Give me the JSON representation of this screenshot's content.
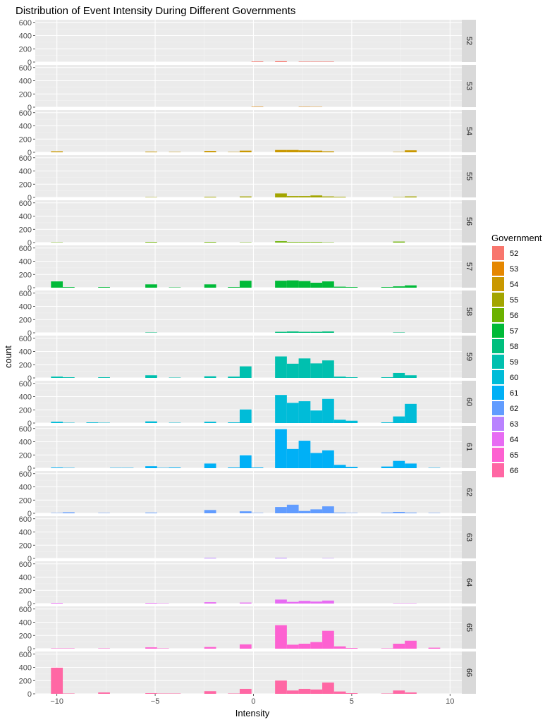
{
  "chart_data": {
    "type": "bar",
    "title": "Distribution of Event Intensity During Different Governments",
    "xlabel": "Intensity",
    "ylabel": "count",
    "xlim": [
      -11.1,
      10.6
    ],
    "ylim": [
      0,
      640
    ],
    "x_ticks": [
      -10,
      -5,
      0,
      5,
      10
    ],
    "x_tick_labels": [
      "−10",
      "−5",
      "0",
      "5",
      "10"
    ],
    "y_ticks": [
      0,
      200,
      400,
      600
    ],
    "y_tick_labels": [
      "0",
      "200",
      "400",
      "600"
    ],
    "bin_width": 0.6,
    "bin_centers": [
      -10.0,
      -9.4,
      -8.8,
      -8.2,
      -7.6,
      -7.0,
      -6.4,
      -5.8,
      -5.2,
      -4.6,
      -4.0,
      -3.4,
      -2.8,
      -2.2,
      -1.6,
      -1.0,
      -0.4,
      0.2,
      0.8,
      1.4,
      2.0,
      2.6,
      3.2,
      3.8,
      4.4,
      5.0,
      5.6,
      6.2,
      6.8,
      7.4,
      8.0,
      8.6,
      9.2,
      9.8
    ],
    "grid": true,
    "legend": {
      "title": "Government",
      "position": "right"
    },
    "series": [
      {
        "name": "52",
        "color": "#F8766D",
        "values": [
          0,
          0,
          0,
          0,
          0,
          0,
          0,
          0,
          0,
          0,
          0,
          0,
          0,
          0,
          0,
          0,
          0,
          8,
          0,
          12,
          0,
          6,
          6,
          6,
          0,
          0,
          0,
          0,
          0,
          0,
          0,
          0,
          0,
          0
        ]
      },
      {
        "name": "53",
        "color": "#E58700",
        "values": [
          0,
          0,
          0,
          0,
          0,
          0,
          0,
          0,
          0,
          0,
          0,
          0,
          0,
          0,
          0,
          0,
          0,
          6,
          0,
          0,
          0,
          5,
          4,
          0,
          0,
          0,
          0,
          0,
          0,
          0,
          0,
          0,
          0,
          0
        ]
      },
      {
        "name": "54",
        "color": "#C99800",
        "values": [
          15,
          0,
          0,
          0,
          0,
          0,
          0,
          0,
          10,
          0,
          5,
          0,
          0,
          20,
          0,
          5,
          25,
          0,
          0,
          35,
          35,
          30,
          25,
          15,
          0,
          0,
          0,
          0,
          0,
          5,
          30,
          0,
          0,
          0
        ]
      },
      {
        "name": "55",
        "color": "#A3A500",
        "values": [
          0,
          0,
          0,
          0,
          0,
          0,
          0,
          0,
          5,
          0,
          0,
          0,
          0,
          10,
          0,
          0,
          15,
          0,
          0,
          60,
          20,
          20,
          30,
          15,
          10,
          0,
          0,
          0,
          0,
          5,
          15,
          0,
          0,
          0
        ]
      },
      {
        "name": "56",
        "color": "#6BB100",
        "values": [
          5,
          0,
          0,
          0,
          0,
          0,
          0,
          0,
          10,
          0,
          0,
          0,
          0,
          10,
          0,
          0,
          5,
          0,
          0,
          20,
          10,
          10,
          10,
          5,
          0,
          0,
          0,
          0,
          0,
          15,
          0,
          0,
          0,
          0
        ]
      },
      {
        "name": "57",
        "color": "#00BA38",
        "values": [
          95,
          10,
          0,
          0,
          10,
          0,
          0,
          0,
          50,
          0,
          5,
          0,
          0,
          50,
          0,
          10,
          105,
          0,
          0,
          105,
          110,
          100,
          75,
          95,
          15,
          10,
          0,
          0,
          10,
          20,
          35,
          0,
          0,
          0
        ]
      },
      {
        "name": "58",
        "color": "#00BF7D",
        "values": [
          0,
          0,
          0,
          0,
          0,
          0,
          0,
          0,
          5,
          0,
          0,
          0,
          0,
          0,
          0,
          0,
          0,
          0,
          0,
          15,
          20,
          15,
          15,
          20,
          0,
          0,
          0,
          0,
          0,
          5,
          0,
          0,
          0,
          0
        ]
      },
      {
        "name": "59",
        "color": "#00C0AF",
        "values": [
          20,
          10,
          0,
          0,
          10,
          0,
          0,
          0,
          40,
          0,
          5,
          0,
          0,
          25,
          0,
          20,
          175,
          0,
          0,
          325,
          215,
          295,
          220,
          265,
          20,
          10,
          0,
          0,
          10,
          75,
          40,
          0,
          0,
          0
        ]
      },
      {
        "name": "60",
        "color": "#00BCD8",
        "values": [
          20,
          5,
          0,
          10,
          5,
          0,
          0,
          0,
          25,
          0,
          5,
          0,
          0,
          20,
          0,
          10,
          205,
          0,
          0,
          425,
          305,
          330,
          190,
          365,
          50,
          35,
          0,
          0,
          10,
          100,
          290,
          0,
          0,
          0
        ]
      },
      {
        "name": "61",
        "color": "#00B0F6",
        "values": [
          10,
          5,
          0,
          0,
          0,
          5,
          5,
          0,
          30,
          5,
          10,
          0,
          0,
          70,
          0,
          10,
          195,
          10,
          0,
          590,
          290,
          415,
          230,
          270,
          50,
          20,
          0,
          0,
          25,
          110,
          70,
          0,
          5,
          0
        ]
      },
      {
        "name": "62",
        "color": "#619CFF",
        "values": [
          5,
          15,
          0,
          0,
          5,
          0,
          0,
          0,
          10,
          0,
          0,
          0,
          0,
          50,
          0,
          0,
          30,
          5,
          0,
          95,
          130,
          35,
          60,
          105,
          10,
          5,
          0,
          0,
          10,
          20,
          10,
          0,
          5,
          0
        ]
      },
      {
        "name": "63",
        "color": "#B983FF",
        "values": [
          0,
          0,
          0,
          0,
          0,
          0,
          0,
          0,
          0,
          0,
          0,
          0,
          0,
          10,
          0,
          0,
          0,
          0,
          0,
          10,
          0,
          0,
          0,
          5,
          0,
          0,
          0,
          0,
          0,
          0,
          0,
          0,
          0,
          0
        ]
      },
      {
        "name": "64",
        "color": "#E76BF3",
        "values": [
          10,
          0,
          0,
          0,
          0,
          0,
          0,
          0,
          10,
          5,
          0,
          0,
          0,
          20,
          0,
          0,
          15,
          0,
          0,
          60,
          25,
          40,
          30,
          45,
          0,
          0,
          0,
          0,
          0,
          5,
          5,
          0,
          0,
          0
        ]
      },
      {
        "name": "65",
        "color": "#FD61D1",
        "values": [
          5,
          5,
          0,
          0,
          5,
          0,
          0,
          0,
          20,
          5,
          0,
          0,
          0,
          25,
          0,
          0,
          65,
          0,
          0,
          355,
          60,
          75,
          100,
          270,
          35,
          10,
          0,
          0,
          5,
          75,
          120,
          0,
          15,
          0
        ]
      },
      {
        "name": "66",
        "color": "#FF67A4",
        "values": [
          395,
          5,
          0,
          0,
          20,
          0,
          0,
          0,
          10,
          5,
          5,
          0,
          0,
          40,
          0,
          5,
          75,
          0,
          0,
          200,
          50,
          75,
          65,
          170,
          35,
          10,
          0,
          0,
          5,
          50,
          20,
          0,
          0,
          0
        ]
      }
    ]
  }
}
